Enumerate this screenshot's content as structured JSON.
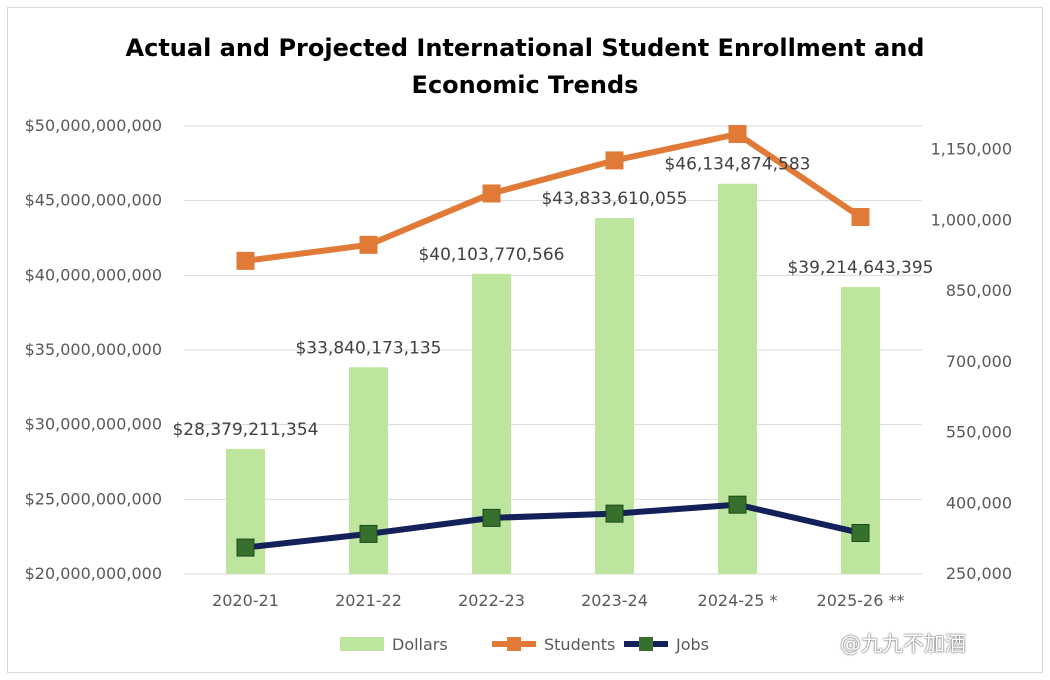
{
  "title": {
    "line1": "Actual and Projected International Student Enrollment and",
    "line2": "Economic Trends"
  },
  "watermark": "@九九不加酒",
  "chart_data": {
    "type": "bar",
    "categories": [
      "2020-21",
      "2021-22",
      "2022-23",
      "2023-24",
      "2024-25 *",
      "2025-26 **"
    ],
    "series": [
      {
        "name": "Dollars",
        "type": "bar",
        "axis": "left",
        "values": [
          28379211354,
          33840173135,
          40103770566,
          43833610055,
          46134874583,
          39214643395
        ],
        "labels": [
          "$28,379,211,354",
          "$33,840,173,135",
          "$40,103,770,566",
          "$43,833,610,055",
          "$46,134,874,583",
          "$39,214,643,395"
        ],
        "color": "#bde59e"
      },
      {
        "name": "Students",
        "type": "line",
        "axis": "right",
        "values": [
          914000,
          948000,
          1057000,
          1127000,
          1183000,
          1007000
        ],
        "color": "#e07a36"
      },
      {
        "name": "Jobs",
        "type": "line",
        "axis": "right",
        "values": [
          306000,
          335000,
          369000,
          378000,
          397000,
          337000
        ],
        "color": "#13205a",
        "marker_color": "#37702c"
      }
    ],
    "y_left": {
      "min": 20000000000,
      "max": 50000000000,
      "ticks": [
        {
          "value": 20000000000,
          "label": "$20,000,000,000"
        },
        {
          "value": 25000000000,
          "label": "$25,000,000,000"
        },
        {
          "value": 30000000000,
          "label": "$30,000,000,000"
        },
        {
          "value": 35000000000,
          "label": "$35,000,000,000"
        },
        {
          "value": 40000000000,
          "label": "$40,000,000,000"
        },
        {
          "value": 45000000000,
          "label": "$45,000,000,000"
        },
        {
          "value": 50000000000,
          "label": "$50,000,000,000"
        }
      ]
    },
    "y_right": {
      "min": 250000,
      "max": 1200000,
      "ticks": [
        {
          "value": 250000,
          "label": "250,000"
        },
        {
          "value": 400000,
          "label": "400,000"
        },
        {
          "value": 550000,
          "label": "550,000"
        },
        {
          "value": 700000,
          "label": "700,000"
        },
        {
          "value": 850000,
          "label": "850,000"
        },
        {
          "value": 1000000,
          "label": "1,000,000"
        },
        {
          "value": 1150000,
          "label": "1,150,000"
        }
      ]
    },
    "grid": true,
    "legend": "bottom"
  }
}
